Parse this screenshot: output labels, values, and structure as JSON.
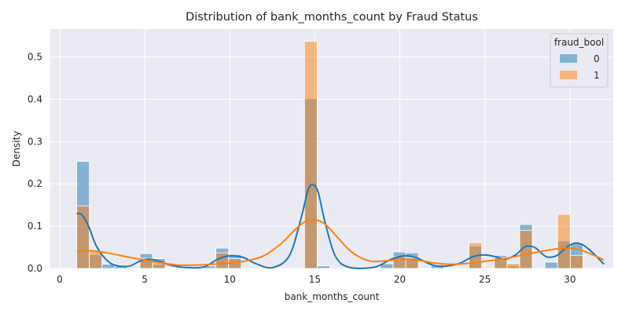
{
  "chart_data": {
    "type": "histogram",
    "title": "Distribution of bank_months_count by Fraud Status",
    "xlabel": "bank_months_count",
    "ylabel": "Density",
    "xlim": [
      -0.55,
      32.55
    ],
    "ylim": [
      0,
      0.566
    ],
    "xticks": [
      0,
      5,
      10,
      15,
      20,
      25,
      30
    ],
    "yticks": [
      0.0,
      0.1,
      0.2,
      0.3,
      0.4,
      0.5
    ],
    "grid": true,
    "legend": {
      "title": "fraud_bool",
      "placement": "top-right"
    },
    "bin_width": 0.7442,
    "bin_start": 1.0,
    "series": [
      {
        "name": "0",
        "color": "#1f77b4",
        "bins": [
          {
            "x": 1.0,
            "density": 0.253
          },
          {
            "x": 1.744,
            "density": 0.033
          },
          {
            "x": 2.488,
            "density": 0.01
          },
          {
            "x": 3.233,
            "density": 0.005
          },
          {
            "x": 4.721,
            "density": 0.035
          },
          {
            "x": 5.465,
            "density": 0.023
          },
          {
            "x": 8.442,
            "density": 0.006
          },
          {
            "x": 9.186,
            "density": 0.048
          },
          {
            "x": 9.93,
            "density": 0.033
          },
          {
            "x": 14.395,
            "density": 0.402
          },
          {
            "x": 15.14,
            "density": 0.006
          },
          {
            "x": 18.86,
            "density": 0.011
          },
          {
            "x": 19.605,
            "density": 0.039
          },
          {
            "x": 20.349,
            "density": 0.037
          },
          {
            "x": 21.837,
            "density": 0.009
          },
          {
            "x": 24.07,
            "density": 0.053
          },
          {
            "x": 25.558,
            "density": 0.031
          },
          {
            "x": 26.302,
            "density": 0.007
          },
          {
            "x": 27.047,
            "density": 0.104
          },
          {
            "x": 28.535,
            "density": 0.015
          },
          {
            "x": 29.279,
            "density": 0.065
          },
          {
            "x": 30.023,
            "density": 0.06
          }
        ],
        "kde": [
          [
            1.0,
            0.13
          ],
          [
            1.3,
            0.127
          ],
          [
            1.7,
            0.1
          ],
          [
            2.2,
            0.05
          ],
          [
            3.0,
            0.012
          ],
          [
            4.0,
            0.005
          ],
          [
            4.7,
            0.017
          ],
          [
            5.2,
            0.022
          ],
          [
            5.8,
            0.018
          ],
          [
            6.5,
            0.008
          ],
          [
            7.5,
            0.002
          ],
          [
            8.5,
            0.004
          ],
          [
            9.3,
            0.022
          ],
          [
            10.0,
            0.03
          ],
          [
            10.8,
            0.026
          ],
          [
            11.5,
            0.012
          ],
          [
            12.5,
            0.002
          ],
          [
            13.5,
            0.03
          ],
          [
            14.2,
            0.12
          ],
          [
            14.6,
            0.185
          ],
          [
            14.9,
            0.198
          ],
          [
            15.2,
            0.18
          ],
          [
            15.6,
            0.11
          ],
          [
            16.2,
            0.03
          ],
          [
            17.0,
            0.003
          ],
          [
            18.5,
            0.003
          ],
          [
            19.5,
            0.022
          ],
          [
            20.3,
            0.03
          ],
          [
            21.0,
            0.025
          ],
          [
            21.8,
            0.01
          ],
          [
            22.5,
            0.005
          ],
          [
            23.5,
            0.012
          ],
          [
            24.3,
            0.028
          ],
          [
            25.0,
            0.032
          ],
          [
            25.6,
            0.028
          ],
          [
            26.2,
            0.022
          ],
          [
            26.8,
            0.032
          ],
          [
            27.3,
            0.05
          ],
          [
            27.6,
            0.053
          ],
          [
            28.0,
            0.048
          ],
          [
            28.6,
            0.028
          ],
          [
            29.2,
            0.03
          ],
          [
            29.8,
            0.05
          ],
          [
            30.3,
            0.06
          ],
          [
            30.8,
            0.055
          ],
          [
            31.4,
            0.035
          ],
          [
            32.0,
            0.01
          ]
        ]
      },
      {
        "name": "1",
        "color": "#ff7f0e",
        "bins": [
          {
            "x": 1.0,
            "density": 0.148
          },
          {
            "x": 1.744,
            "density": 0.042
          },
          {
            "x": 4.721,
            "density": 0.024
          },
          {
            "x": 5.465,
            "density": 0.011
          },
          {
            "x": 9.186,
            "density": 0.037
          },
          {
            "x": 9.93,
            "density": 0.023
          },
          {
            "x": 14.395,
            "density": 0.537
          },
          {
            "x": 19.605,
            "density": 0.028
          },
          {
            "x": 20.349,
            "density": 0.025
          },
          {
            "x": 24.07,
            "density": 0.061
          },
          {
            "x": 25.558,
            "density": 0.026
          },
          {
            "x": 26.302,
            "density": 0.012
          },
          {
            "x": 27.047,
            "density": 0.09
          },
          {
            "x": 29.279,
            "density": 0.128
          },
          {
            "x": 30.023,
            "density": 0.031
          }
        ],
        "kde": [
          [
            1.0,
            0.04
          ],
          [
            1.8,
            0.042
          ],
          [
            2.8,
            0.037
          ],
          [
            4.0,
            0.027
          ],
          [
            5.0,
            0.02
          ],
          [
            6.0,
            0.013
          ],
          [
            7.0,
            0.008
          ],
          [
            8.0,
            0.008
          ],
          [
            9.0,
            0.01
          ],
          [
            10.0,
            0.013
          ],
          [
            11.0,
            0.018
          ],
          [
            12.0,
            0.03
          ],
          [
            13.0,
            0.058
          ],
          [
            13.8,
            0.09
          ],
          [
            14.4,
            0.11
          ],
          [
            15.0,
            0.115
          ],
          [
            15.6,
            0.105
          ],
          [
            16.3,
            0.075
          ],
          [
            17.2,
            0.038
          ],
          [
            18.2,
            0.018
          ],
          [
            19.2,
            0.018
          ],
          [
            20.0,
            0.022
          ],
          [
            21.0,
            0.02
          ],
          [
            22.0,
            0.013
          ],
          [
            23.0,
            0.01
          ],
          [
            24.0,
            0.012
          ],
          [
            25.0,
            0.017
          ],
          [
            26.0,
            0.022
          ],
          [
            27.0,
            0.03
          ],
          [
            28.0,
            0.038
          ],
          [
            29.0,
            0.045
          ],
          [
            29.8,
            0.048
          ],
          [
            30.5,
            0.045
          ],
          [
            31.2,
            0.035
          ],
          [
            32.0,
            0.02
          ]
        ]
      }
    ]
  }
}
